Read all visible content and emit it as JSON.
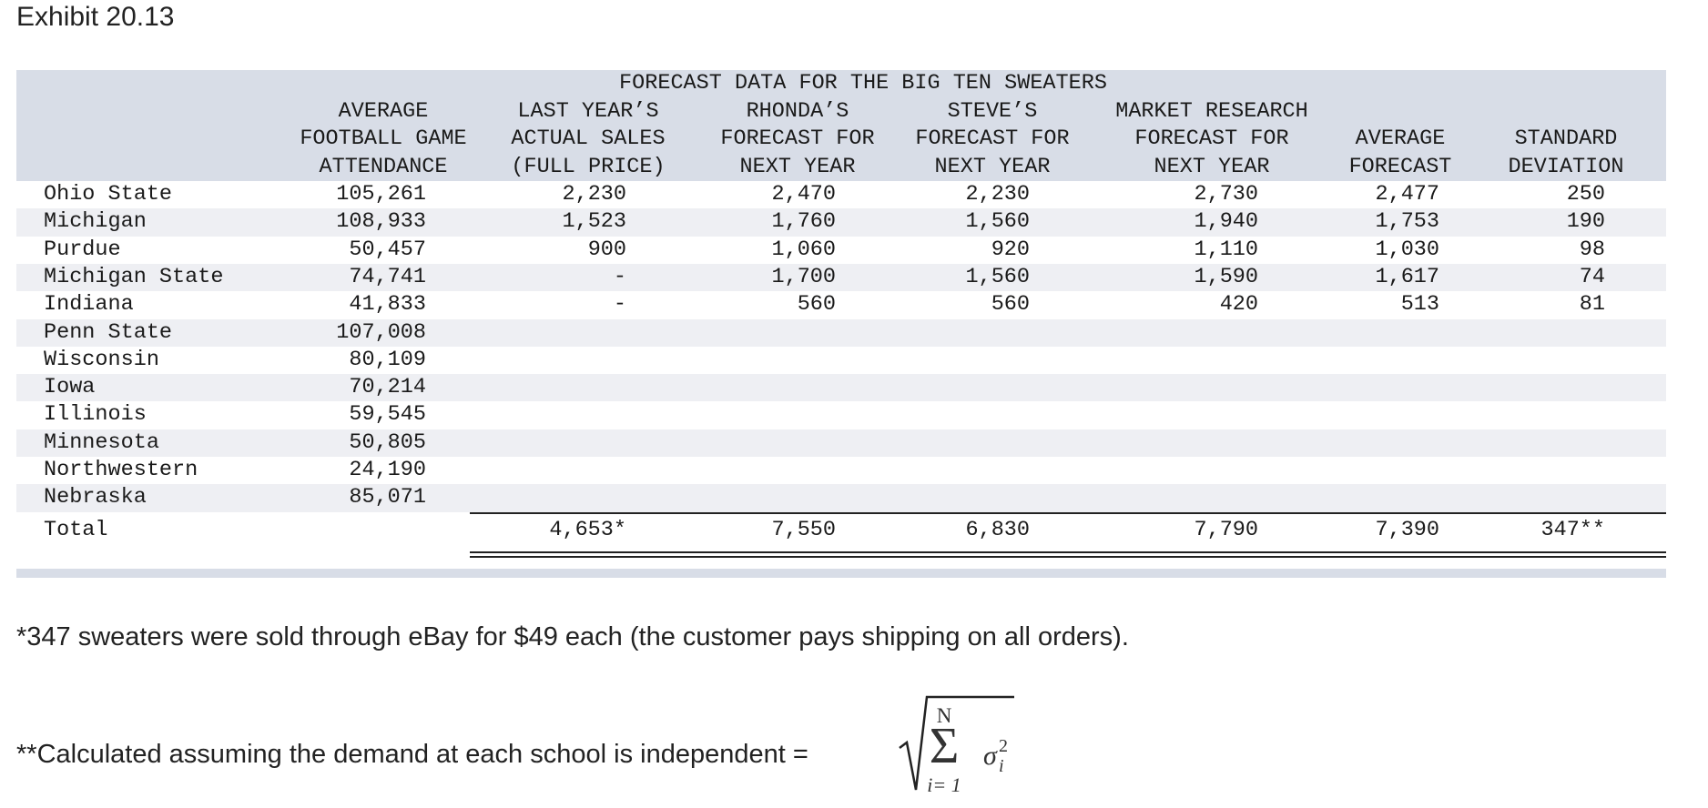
{
  "exhibit_title": "Exhibit 20.13",
  "table": {
    "group_title": "FORECAST DATA FOR THE BIG TEN SWEATERS",
    "headers": {
      "attendance": [
        "AVERAGE",
        "FOOTBALL GAME",
        "ATTENDANCE"
      ],
      "last_year": [
        "LAST YEAR’S",
        "ACTUAL SALES",
        "(FULL PRICE)"
      ],
      "rhonda": [
        "RHONDA’S",
        "FORECAST FOR",
        "NEXT YEAR"
      ],
      "steve": [
        "STEVE’S",
        "FORECAST FOR",
        "NEXT YEAR"
      ],
      "market": [
        "MARKET RESEARCH",
        "FORECAST FOR",
        "NEXT YEAR"
      ],
      "average": [
        "AVERAGE",
        "FORECAST"
      ],
      "stdev": [
        "STANDARD",
        "DEVIATION"
      ]
    },
    "rows": [
      {
        "school": "Ohio State",
        "attendance": "105,261",
        "last_year": "2,230",
        "rhonda": "2,470",
        "steve": "2,230",
        "market": "2,730",
        "average": "2,477",
        "stdev": "250"
      },
      {
        "school": "Michigan",
        "attendance": "108,933",
        "last_year": "1,523",
        "rhonda": "1,760",
        "steve": "1,560",
        "market": "1,940",
        "average": "1,753",
        "stdev": "190"
      },
      {
        "school": "Purdue",
        "attendance": "50,457",
        "last_year": "900",
        "rhonda": "1,060",
        "steve": "920",
        "market": "1,110",
        "average": "1,030",
        "stdev": "98"
      },
      {
        "school": "Michigan State",
        "attendance": "74,741",
        "last_year": "-",
        "rhonda": "1,700",
        "steve": "1,560",
        "market": "1,590",
        "average": "1,617",
        "stdev": "74"
      },
      {
        "school": "Indiana",
        "attendance": "41,833",
        "last_year": "-",
        "rhonda": "560",
        "steve": "560",
        "market": "420",
        "average": "513",
        "stdev": "81"
      },
      {
        "school": "Penn State",
        "attendance": "107,008",
        "last_year": "",
        "rhonda": "",
        "steve": "",
        "market": "",
        "average": "",
        "stdev": ""
      },
      {
        "school": "Wisconsin",
        "attendance": "80,109",
        "last_year": "",
        "rhonda": "",
        "steve": "",
        "market": "",
        "average": "",
        "stdev": ""
      },
      {
        "school": "Iowa",
        "attendance": "70,214",
        "last_year": "",
        "rhonda": "",
        "steve": "",
        "market": "",
        "average": "",
        "stdev": ""
      },
      {
        "school": "Illinois",
        "attendance": "59,545",
        "last_year": "",
        "rhonda": "",
        "steve": "",
        "market": "",
        "average": "",
        "stdev": ""
      },
      {
        "school": "Minnesota",
        "attendance": "50,805",
        "last_year": "",
        "rhonda": "",
        "steve": "",
        "market": "",
        "average": "",
        "stdev": ""
      },
      {
        "school": "Northwestern",
        "attendance": "24,190",
        "last_year": "",
        "rhonda": "",
        "steve": "",
        "market": "",
        "average": "",
        "stdev": ""
      },
      {
        "school": "Nebraska",
        "attendance": "85,071",
        "last_year": "",
        "rhonda": "",
        "steve": "",
        "market": "",
        "average": "",
        "stdev": ""
      }
    ],
    "total": {
      "label": "Total",
      "last_year": "4,653*",
      "rhonda": "7,550",
      "steve": "6,830",
      "market": "7,790",
      "average": "7,390",
      "stdev": "347**"
    }
  },
  "footnotes": {
    "one": "*347 sweaters were sold through eBay for $49 each (the customer pays shipping on all orders).",
    "two": "**Calculated assuming the demand at each school is independent ="
  },
  "formula": {
    "upper_limit": "N",
    "lower_limit": "i= 1",
    "sigma": "σ",
    "subscript": "i",
    "superscript": "2"
  }
}
